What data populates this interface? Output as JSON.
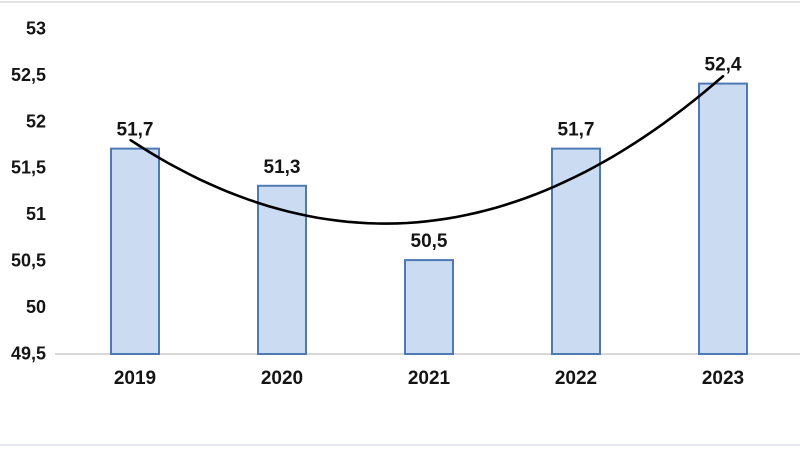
{
  "chart_data": {
    "type": "bar",
    "title": "",
    "xlabel": "",
    "ylabel": "",
    "categories": [
      "2019",
      "2020",
      "2021",
      "2022",
      "2023"
    ],
    "values": [
      51.7,
      51.3,
      50.5,
      51.7,
      52.4
    ],
    "value_labels": [
      "51,7",
      "51,3",
      "50,5",
      "51,7",
      "52,4"
    ],
    "ylim": [
      49.5,
      53
    ],
    "y_ticks": [
      {
        "value": 53,
        "label": "53"
      },
      {
        "value": 52.5,
        "label": "52,5"
      },
      {
        "value": 52,
        "label": "52"
      },
      {
        "value": 51.5,
        "label": "51,5"
      },
      {
        "value": 51,
        "label": "51"
      },
      {
        "value": 50.5,
        "label": "50,5"
      },
      {
        "value": 50,
        "label": "50"
      },
      {
        "value": 49.5,
        "label": "49,5"
      }
    ],
    "grid": false,
    "legend": false,
    "trendline": {
      "type": "polynomial",
      "order": 2,
      "color": "#000000"
    },
    "colors": {
      "bar_fill": "#CBDCF2",
      "bar_border": "#4E79B2",
      "axis_line": "#D8D8D8",
      "label_text": "#141414",
      "frame_top_border": "#DCDCDC",
      "frame_bottom_border": "#DCE1E8"
    }
  }
}
